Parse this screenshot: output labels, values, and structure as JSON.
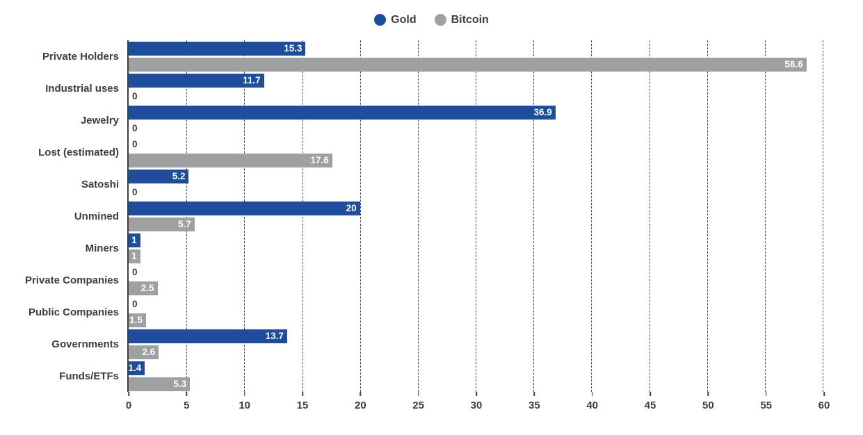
{
  "chart_data": {
    "type": "bar",
    "orientation": "horizontal",
    "title": "",
    "xlabel": "",
    "ylabel": "",
    "categories": [
      "Private Holders",
      "Industrial uses",
      "Jewelry",
      "Lost (estimated)",
      "Satoshi",
      "Unmined",
      "Miners",
      "Private Companies",
      "Public Companies",
      "Governments",
      "Funds/ETFs"
    ],
    "series": [
      {
        "name": "Gold",
        "color": "#1E4D9B",
        "values": [
          15.3,
          11.7,
          36.9,
          0,
          5.2,
          20,
          1,
          0,
          0,
          13.7,
          1.4
        ]
      },
      {
        "name": "Bitcoin",
        "color": "#9EA0A2",
        "values": [
          58.6,
          0,
          0,
          17.6,
          0,
          5.7,
          1,
          2.5,
          1.5,
          2.6,
          5.3
        ]
      }
    ],
    "xlim": [
      0,
      60
    ],
    "xticks": [
      0,
      5,
      10,
      15,
      20,
      25,
      30,
      35,
      40,
      45,
      50,
      55,
      60
    ],
    "grid": "vertical-dashed",
    "legend_position": "top-center",
    "value_labels_shown": true,
    "zero_label_text": "0"
  },
  "style": {
    "text_color": "#3d3d3d",
    "grid_color": "#474747",
    "axis_color": "#3f3f3f",
    "bar_label_color": "#ffffff",
    "background": "#ffffff"
  }
}
